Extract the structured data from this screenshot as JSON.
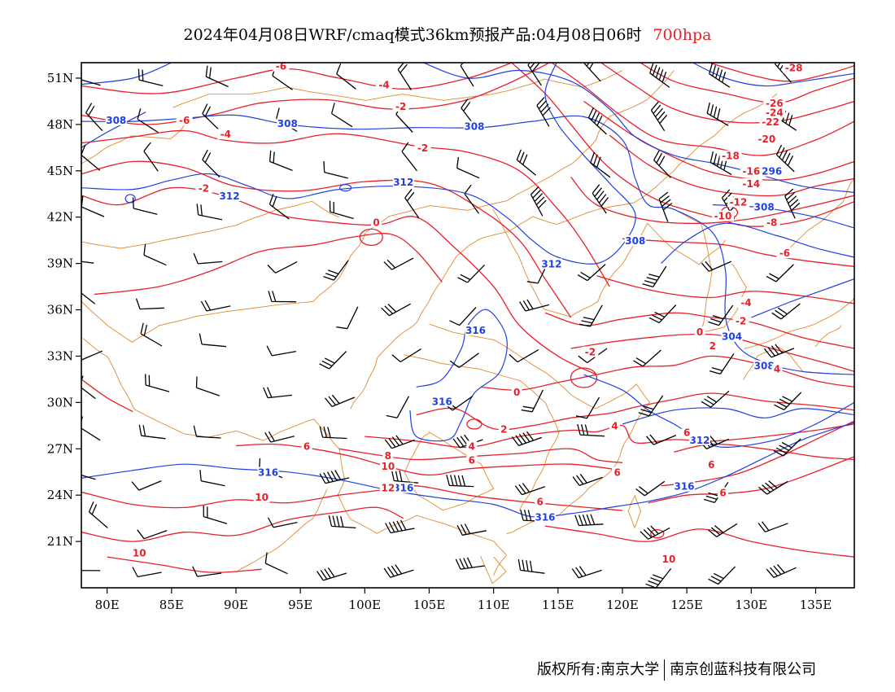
{
  "header": {
    "title": "2024年04月08日WRF/cmaq模式36km预报产品:04月08日06时",
    "level": "700hpa"
  },
  "map": {
    "lon_range": [
      78,
      138
    ],
    "lat_range": [
      18,
      52
    ],
    "colors": {
      "temperature_contour": "#e8202a",
      "height_contour": "#2040e0",
      "boundary": "#e08a30",
      "wind_barb": "#000000",
      "frame": "#000000"
    },
    "lon_ticks": [
      {
        "value": 80,
        "label": "80E"
      },
      {
        "value": 85,
        "label": "85E"
      },
      {
        "value": 90,
        "label": "90E"
      },
      {
        "value": 95,
        "label": "95E"
      },
      {
        "value": 100,
        "label": "100E"
      },
      {
        "value": 105,
        "label": "105E"
      },
      {
        "value": 110,
        "label": "110E"
      },
      {
        "value": 115,
        "label": "115E"
      },
      {
        "value": 120,
        "label": "120E"
      },
      {
        "value": 125,
        "label": "125E"
      },
      {
        "value": 130,
        "label": "130E"
      },
      {
        "value": 135,
        "label": "135E"
      }
    ],
    "lat_ticks": [
      {
        "value": 21,
        "label": "21N"
      },
      {
        "value": 24,
        "label": "24N"
      },
      {
        "value": 27,
        "label": "27N"
      },
      {
        "value": 30,
        "label": "30N"
      },
      {
        "value": 33,
        "label": "33N"
      },
      {
        "value": 36,
        "label": "36N"
      },
      {
        "value": 39,
        "label": "39N"
      },
      {
        "value": 42,
        "label": "42N"
      },
      {
        "value": 45,
        "label": "45N"
      },
      {
        "value": 48,
        "label": "48N"
      },
      {
        "value": 51,
        "label": "51N"
      }
    ],
    "height_labels": [
      {
        "text": "308",
        "lon": 80.7,
        "lat": 48.2
      },
      {
        "text": "308",
        "lon": 94.0,
        "lat": 48.0
      },
      {
        "text": "308",
        "lon": 108.5,
        "lat": 47.8
      },
      {
        "text": "312",
        "lon": 89.5,
        "lat": 43.3
      },
      {
        "text": "312",
        "lon": 103.0,
        "lat": 44.2
      },
      {
        "text": "308",
        "lon": 121.0,
        "lat": 40.4
      },
      {
        "text": "312",
        "lon": 114.5,
        "lat": 38.9
      },
      {
        "text": "316",
        "lon": 108.6,
        "lat": 34.6
      },
      {
        "text": "316",
        "lon": 106.0,
        "lat": 30.0
      },
      {
        "text": "316",
        "lon": 92.5,
        "lat": 25.4
      },
      {
        "text": "316",
        "lon": 103.0,
        "lat": 24.4
      },
      {
        "text": "316",
        "lon": 114.0,
        "lat": 22.5
      },
      {
        "text": "316",
        "lon": 124.8,
        "lat": 24.5
      },
      {
        "text": "312",
        "lon": 126.0,
        "lat": 27.5
      },
      {
        "text": "308",
        "lon": 131.0,
        "lat": 32.3
      },
      {
        "text": "304",
        "lon": 128.5,
        "lat": 34.2
      },
      {
        "text": "308",
        "lon": 131.0,
        "lat": 42.6
      },
      {
        "text": "296",
        "lon": 131.6,
        "lat": 44.9
      }
    ],
    "temp_labels": [
      {
        "text": "-6",
        "lon": 93.5,
        "lat": 51.7
      },
      {
        "text": "-4",
        "lon": 101.5,
        "lat": 50.5
      },
      {
        "text": "-2",
        "lon": 102.8,
        "lat": 49.1
      },
      {
        "text": "-6",
        "lon": 86.0,
        "lat": 48.2
      },
      {
        "text": "-4",
        "lon": 89.2,
        "lat": 47.3
      },
      {
        "text": "-2",
        "lon": 104.5,
        "lat": 46.4
      },
      {
        "text": "-2",
        "lon": 87.5,
        "lat": 43.8
      },
      {
        "text": "0",
        "lon": 100.9,
        "lat": 41.6
      },
      {
        "text": "-28",
        "lon": 133.3,
        "lat": 51.6
      },
      {
        "text": "-26",
        "lon": 131.8,
        "lat": 49.3
      },
      {
        "text": "-24",
        "lon": 131.8,
        "lat": 48.7
      },
      {
        "text": "-22",
        "lon": 131.5,
        "lat": 48.1
      },
      {
        "text": "-20",
        "lon": 131.2,
        "lat": 47.0
      },
      {
        "text": "-18",
        "lon": 128.4,
        "lat": 45.9
      },
      {
        "text": "-16",
        "lon": 130.0,
        "lat": 44.9
      },
      {
        "text": "-14",
        "lon": 130.0,
        "lat": 44.1
      },
      {
        "text": "-12",
        "lon": 129.0,
        "lat": 42.9
      },
      {
        "text": "-10",
        "lon": 127.8,
        "lat": 42.0
      },
      {
        "text": "-8",
        "lon": 131.6,
        "lat": 41.6
      },
      {
        "text": "-6",
        "lon": 132.6,
        "lat": 39.6
      },
      {
        "text": "-4",
        "lon": 129.6,
        "lat": 36.4
      },
      {
        "text": "-2",
        "lon": 129.2,
        "lat": 35.2
      },
      {
        "text": "0",
        "lon": 126.0,
        "lat": 34.5
      },
      {
        "text": "2",
        "lon": 127.0,
        "lat": 33.6
      },
      {
        "text": "4",
        "lon": 132.0,
        "lat": 32.1
      },
      {
        "text": "-2",
        "lon": 117.5,
        "lat": 33.2
      },
      {
        "text": "0",
        "lon": 111.8,
        "lat": 30.6
      },
      {
        "text": "2",
        "lon": 110.8,
        "lat": 28.2
      },
      {
        "text": "4",
        "lon": 119.4,
        "lat": 28.4
      },
      {
        "text": "6",
        "lon": 125.0,
        "lat": 28.0
      },
      {
        "text": "6",
        "lon": 119.6,
        "lat": 25.4
      },
      {
        "text": "6",
        "lon": 127.8,
        "lat": 24.1
      },
      {
        "text": "6",
        "lon": 113.6,
        "lat": 23.5
      },
      {
        "text": "6",
        "lon": 126.9,
        "lat": 25.9
      },
      {
        "text": "4",
        "lon": 108.3,
        "lat": 27.1
      },
      {
        "text": "6",
        "lon": 108.3,
        "lat": 26.2
      },
      {
        "text": "6",
        "lon": 95.5,
        "lat": 27.1
      },
      {
        "text": "8",
        "lon": 101.8,
        "lat": 26.5
      },
      {
        "text": "10",
        "lon": 101.8,
        "lat": 25.8
      },
      {
        "text": "12",
        "lon": 101.8,
        "lat": 24.4
      },
      {
        "text": "10",
        "lon": 92.0,
        "lat": 23.8
      },
      {
        "text": "10",
        "lon": 82.5,
        "lat": 20.2
      },
      {
        "text": "10",
        "lon": 123.6,
        "lat": 19.8
      }
    ]
  },
  "footer": {
    "copyright": "版权所有:南京大学",
    "company": "南京创蓝科技有限公司"
  }
}
